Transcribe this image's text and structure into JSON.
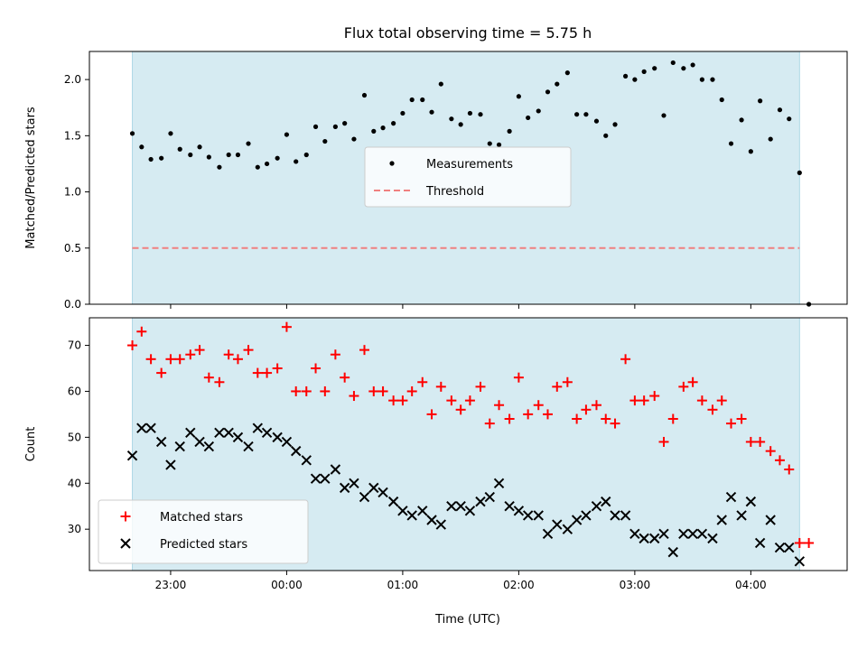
{
  "chart_data": {
    "title": "Flux total observing time = 5.75 h",
    "xlabel": "Time (UTC)",
    "x_tick_labels": [
      "23:00",
      "00:00",
      "01:00",
      "02:00",
      "03:00",
      "04:00"
    ],
    "x_ticks_hours": [
      23,
      24,
      25,
      26,
      27,
      28
    ],
    "x_unit": "hours since 00:00 UTC of the first night (values ≥ 24 are after midnight)",
    "x_range": [
      22.3,
      28.83
    ],
    "observing_window": [
      22.67,
      28.42
    ],
    "observing_window_color": "#add8e6",
    "panels": [
      {
        "type": "scatter",
        "ylabel": "Matched/Predicted stars",
        "ylim": [
          0,
          2.25
        ],
        "y_ticks": [
          0.0,
          0.5,
          1.0,
          1.5,
          2.0
        ],
        "y_tick_labels": [
          "0.0",
          "0.5",
          "1.0",
          "1.5",
          "2.0"
        ],
        "legend_position": "center",
        "series": [
          {
            "name": "Measurements",
            "color": "#000000",
            "marker": "dot",
            "x": [
              22.67,
              22.75,
              22.83,
              22.92,
              23.0,
              23.08,
              23.17,
              23.25,
              23.33,
              23.42,
              23.5,
              23.58,
              23.67,
              23.75,
              23.83,
              23.92,
              24.0,
              24.08,
              24.17,
              24.25,
              24.33,
              24.42,
              24.5,
              24.58,
              24.67,
              24.75,
              24.83,
              24.92,
              25.0,
              25.08,
              25.17,
              25.25,
              25.33,
              25.42,
              25.5,
              25.58,
              25.67,
              25.75,
              25.83,
              25.92,
              26.0,
              26.08,
              26.17,
              26.25,
              26.33,
              26.42,
              26.5,
              26.58,
              26.67,
              26.75,
              26.83,
              26.92,
              27.0,
              27.08,
              27.17,
              27.25,
              27.33,
              27.42,
              27.5,
              27.58,
              27.67,
              27.75,
              27.83,
              27.92,
              28.0,
              28.08,
              28.17,
              28.25,
              28.33,
              28.42,
              28.5
            ],
            "y": [
              1.52,
              1.4,
              1.29,
              1.3,
              1.52,
              1.38,
              1.33,
              1.4,
              1.31,
              1.22,
              1.33,
              1.33,
              1.43,
              1.22,
              1.25,
              1.3,
              1.51,
              1.27,
              1.33,
              1.58,
              1.45,
              1.58,
              1.61,
              1.47,
              1.86,
              1.54,
              1.57,
              1.61,
              1.7,
              1.82,
              1.82,
              1.71,
              1.96,
              1.65,
              1.6,
              1.7,
              1.69,
              1.43,
              1.42,
              1.54,
              1.85,
              1.66,
              1.72,
              1.89,
              1.96,
              2.06,
              1.69,
              1.69,
              1.63,
              1.5,
              1.6,
              2.03,
              2.0,
              2.07,
              2.1,
              1.68,
              2.15,
              2.1,
              2.13,
              2.0,
              2.0,
              1.82,
              1.43,
              1.64,
              1.36,
              1.81,
              1.47,
              1.73,
              1.65,
              1.17,
              0.0
            ]
          },
          {
            "name": "Threshold",
            "type": "line",
            "style": "dashed",
            "color": "#f08080",
            "x": [
              22.67,
              28.42
            ],
            "y": [
              0.5,
              0.5
            ]
          }
        ]
      },
      {
        "type": "scatter",
        "ylabel": "Count",
        "ylim": [
          21,
          76
        ],
        "y_ticks": [
          30,
          40,
          50,
          60,
          70
        ],
        "y_tick_labels": [
          "30",
          "40",
          "50",
          "60",
          "70"
        ],
        "legend_position": "lower-left",
        "series": [
          {
            "name": "Matched stars",
            "color": "#ff0000",
            "marker": "plus",
            "x": [
              22.67,
              22.75,
              22.83,
              22.92,
              23.0,
              23.08,
              23.17,
              23.25,
              23.33,
              23.42,
              23.5,
              23.58,
              23.67,
              23.75,
              23.83,
              23.92,
              24.0,
              24.08,
              24.17,
              24.25,
              24.33,
              24.42,
              24.5,
              24.58,
              24.67,
              24.75,
              24.83,
              24.92,
              25.0,
              25.08,
              25.17,
              25.25,
              25.33,
              25.42,
              25.5,
              25.58,
              25.67,
              25.75,
              25.83,
              25.92,
              26.0,
              26.08,
              26.17,
              26.25,
              26.33,
              26.42,
              26.5,
              26.58,
              26.67,
              26.75,
              26.83,
              26.92,
              27.0,
              27.08,
              27.17,
              27.25,
              27.33,
              27.42,
              27.5,
              27.58,
              27.67,
              27.75,
              27.83,
              27.92,
              28.0,
              28.08,
              28.17,
              28.25,
              28.33,
              28.42,
              28.5
            ],
            "y": [
              70,
              73,
              67,
              64,
              67,
              67,
              68,
              69,
              63,
              62,
              68,
              67,
              69,
              64,
              64,
              65,
              74,
              60,
              60,
              65,
              60,
              68,
              63,
              59,
              69,
              60,
              60,
              58,
              58,
              60,
              62,
              55,
              61,
              58,
              56,
              58,
              61,
              53,
              57,
              54,
              63,
              55,
              57,
              55,
              61,
              62,
              54,
              56,
              57,
              54,
              53,
              67,
              58,
              58,
              59,
              49,
              54,
              61,
              62,
              58,
              56,
              58,
              53,
              54,
              49,
              49,
              47,
              45,
              43,
              27,
              27
            ]
          },
          {
            "name": "Predicted stars",
            "color": "#000000",
            "marker": "x",
            "x": [
              22.67,
              22.75,
              22.83,
              22.92,
              23.0,
              23.08,
              23.17,
              23.25,
              23.33,
              23.42,
              23.5,
              23.58,
              23.67,
              23.75,
              23.83,
              23.92,
              24.0,
              24.08,
              24.17,
              24.25,
              24.33,
              24.42,
              24.5,
              24.58,
              24.67,
              24.75,
              24.83,
              24.92,
              25.0,
              25.08,
              25.17,
              25.25,
              25.33,
              25.42,
              25.5,
              25.58,
              25.67,
              25.75,
              25.83,
              25.92,
              26.0,
              26.08,
              26.17,
              26.25,
              26.33,
              26.42,
              26.5,
              26.58,
              26.67,
              26.75,
              26.83,
              26.92,
              27.0,
              27.08,
              27.17,
              27.25,
              27.33,
              27.42,
              27.5,
              27.58,
              27.67,
              27.75,
              27.83,
              27.92,
              28.0,
              28.08,
              28.17,
              28.25,
              28.33,
              28.42
            ],
            "y": [
              46,
              52,
              52,
              49,
              44,
              48,
              51,
              49,
              48,
              51,
              51,
              50,
              48,
              52,
              51,
              50,
              49,
              47,
              45,
              41,
              41,
              43,
              39,
              40,
              37,
              39,
              38,
              36,
              34,
              33,
              34,
              32,
              31,
              35,
              35,
              34,
              36,
              37,
              40,
              35,
              34,
              33,
              33,
              29,
              31,
              30,
              32,
              33,
              35,
              36,
              33,
              33,
              29,
              28,
              28,
              29,
              25,
              29,
              29,
              29,
              28,
              32,
              37,
              33,
              36,
              27,
              32,
              26,
              26,
              23
            ]
          }
        ]
      }
    ]
  }
}
